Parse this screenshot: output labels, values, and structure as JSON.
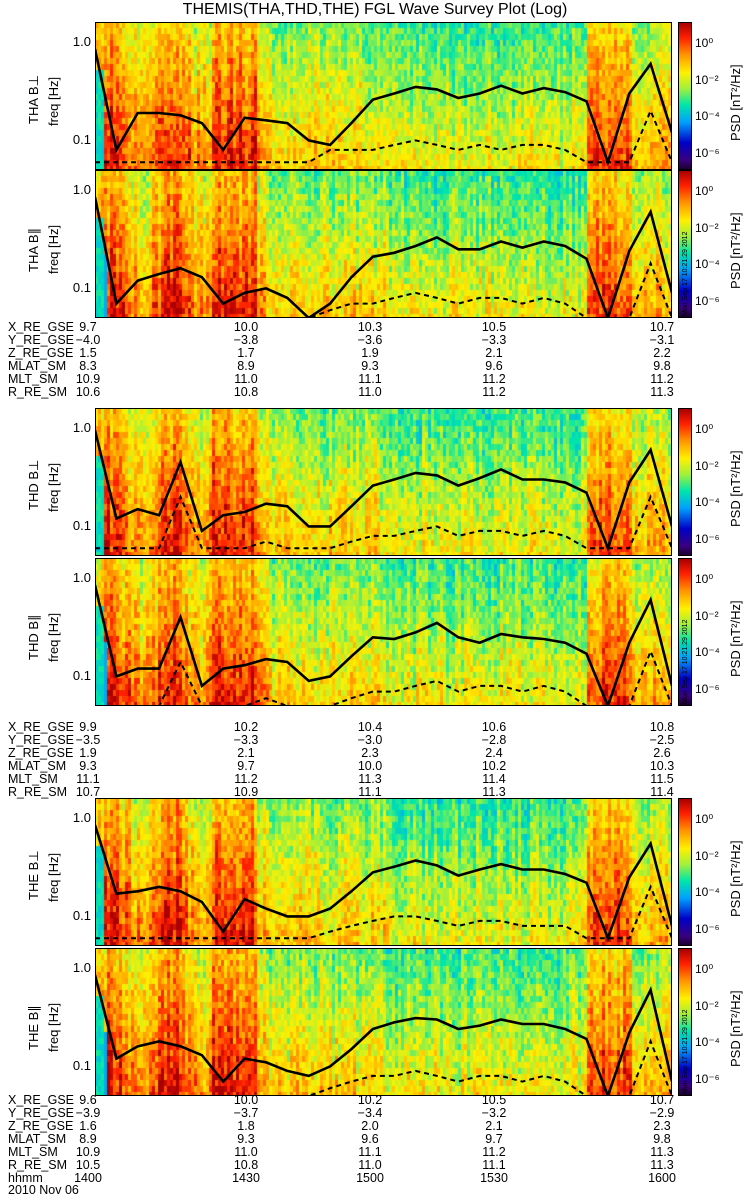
{
  "title": "THEMIS(THA,THD,THE) FGL Wave Survey Plot (Log)",
  "colorbar": {
    "label": "PSD [nT²/Hz]",
    "ticks": [
      "10⁰",
      "10⁻²",
      "10⁻⁴",
      "10⁻⁶"
    ],
    "stamp": "Mon Sep 17 10:21:29 2012"
  },
  "y_axis": {
    "label": "freq [Hz]",
    "ticks": [
      "1.0",
      "0.1"
    ]
  },
  "chart_data": [
    {
      "type": "heatmap",
      "probe": "THA",
      "panel_label": "THA B⊥",
      "component": "perp",
      "seed": 11,
      "ylabel": "freq [Hz]",
      "ylim": [
        0.05,
        1.6
      ],
      "yscale": "log",
      "solid_line": [
        0.85,
        0.08,
        0.19,
        0.19,
        0.18,
        0.15,
        0.08,
        0.17,
        0.16,
        0.15,
        0.1,
        0.09,
        0.15,
        0.26,
        0.3,
        0.35,
        0.33,
        0.27,
        0.3,
        0.36,
        0.3,
        0.34,
        0.31,
        0.25,
        0.06,
        0.3,
        0.6,
        0.12
      ],
      "dashed_line": [
        0.06,
        0.06,
        0.06,
        0.06,
        0.06,
        0.06,
        0.06,
        0.06,
        0.06,
        0.06,
        0.06,
        0.08,
        0.08,
        0.08,
        0.09,
        0.1,
        0.09,
        0.08,
        0.09,
        0.08,
        0.09,
        0.09,
        0.08,
        0.06,
        0.06,
        0.06,
        0.2,
        0.06
      ]
    },
    {
      "type": "heatmap",
      "probe": "THA",
      "panel_label": "THA B∥",
      "component": "para",
      "seed": 23,
      "ylabel": "freq [Hz]",
      "ylim": [
        0.05,
        1.6
      ],
      "yscale": "log",
      "solid_line": [
        0.85,
        0.07,
        0.12,
        0.14,
        0.16,
        0.13,
        0.07,
        0.09,
        0.1,
        0.08,
        0.05,
        0.07,
        0.13,
        0.21,
        0.23,
        0.27,
        0.33,
        0.25,
        0.25,
        0.3,
        0.26,
        0.3,
        0.27,
        0.2,
        0.05,
        0.24,
        0.6,
        0.09
      ],
      "dashed_line": [
        0.05,
        0.05,
        0.05,
        0.05,
        0.05,
        0.05,
        0.05,
        0.05,
        0.05,
        0.05,
        0.05,
        0.06,
        0.07,
        0.07,
        0.08,
        0.09,
        0.08,
        0.07,
        0.08,
        0.08,
        0.07,
        0.08,
        0.07,
        0.05,
        0.05,
        0.05,
        0.18,
        0.05
      ]
    },
    {
      "type": "heatmap",
      "probe": "THD",
      "panel_label": "THD B⊥",
      "component": "perp",
      "seed": 37,
      "ylabel": "freq [Hz]",
      "ylim": [
        0.05,
        1.6
      ],
      "yscale": "log",
      "solid_line": [
        0.95,
        0.12,
        0.15,
        0.13,
        0.45,
        0.09,
        0.13,
        0.14,
        0.17,
        0.16,
        0.1,
        0.1,
        0.16,
        0.26,
        0.3,
        0.35,
        0.33,
        0.26,
        0.31,
        0.38,
        0.3,
        0.3,
        0.28,
        0.22,
        0.06,
        0.28,
        0.6,
        0.1
      ],
      "dashed_line": [
        0.06,
        0.06,
        0.06,
        0.06,
        0.2,
        0.06,
        0.06,
        0.06,
        0.07,
        0.06,
        0.06,
        0.06,
        0.07,
        0.08,
        0.08,
        0.09,
        0.1,
        0.08,
        0.09,
        0.09,
        0.08,
        0.09,
        0.08,
        0.06,
        0.06,
        0.06,
        0.2,
        0.06
      ]
    },
    {
      "type": "heatmap",
      "probe": "THD",
      "panel_label": "THD B∥",
      "component": "para",
      "seed": 51,
      "ylabel": "freq [Hz]",
      "ylim": [
        0.05,
        1.6
      ],
      "yscale": "log",
      "solid_line": [
        0.85,
        0.1,
        0.12,
        0.12,
        0.4,
        0.08,
        0.12,
        0.13,
        0.15,
        0.14,
        0.09,
        0.1,
        0.16,
        0.25,
        0.24,
        0.28,
        0.35,
        0.25,
        0.22,
        0.27,
        0.25,
        0.24,
        0.22,
        0.17,
        0.05,
        0.22,
        0.6,
        0.08
      ],
      "dashed_line": [
        0.05,
        0.05,
        0.05,
        0.05,
        0.14,
        0.05,
        0.05,
        0.05,
        0.06,
        0.05,
        0.05,
        0.05,
        0.06,
        0.07,
        0.07,
        0.08,
        0.09,
        0.07,
        0.08,
        0.08,
        0.07,
        0.08,
        0.07,
        0.05,
        0.05,
        0.05,
        0.18,
        0.05
      ]
    },
    {
      "type": "heatmap",
      "probe": "THE",
      "panel_label": "THE B⊥",
      "component": "perp",
      "seed": 67,
      "ylabel": "freq [Hz]",
      "ylim": [
        0.05,
        1.6
      ],
      "yscale": "log",
      "solid_line": [
        0.85,
        0.17,
        0.18,
        0.2,
        0.18,
        0.14,
        0.07,
        0.15,
        0.12,
        0.1,
        0.1,
        0.12,
        0.18,
        0.28,
        0.32,
        0.37,
        0.33,
        0.26,
        0.3,
        0.34,
        0.3,
        0.3,
        0.27,
        0.22,
        0.06,
        0.25,
        0.55,
        0.08
      ],
      "dashed_line": [
        0.06,
        0.06,
        0.06,
        0.06,
        0.06,
        0.06,
        0.06,
        0.06,
        0.06,
        0.06,
        0.06,
        0.07,
        0.08,
        0.09,
        0.1,
        0.1,
        0.09,
        0.08,
        0.09,
        0.09,
        0.08,
        0.08,
        0.08,
        0.06,
        0.06,
        0.06,
        0.2,
        0.06
      ]
    },
    {
      "type": "heatmap",
      "probe": "THE",
      "panel_label": "THE B∥",
      "component": "para",
      "seed": 83,
      "ylabel": "freq [Hz]",
      "ylim": [
        0.05,
        1.6
      ],
      "yscale": "log",
      "solid_line": [
        0.85,
        0.12,
        0.16,
        0.18,
        0.16,
        0.13,
        0.07,
        0.12,
        0.11,
        0.09,
        0.08,
        0.1,
        0.15,
        0.24,
        0.28,
        0.31,
        0.3,
        0.24,
        0.26,
        0.3,
        0.27,
        0.27,
        0.24,
        0.19,
        0.05,
        0.22,
        0.6,
        0.07
      ],
      "dashed_line": [
        0.05,
        0.05,
        0.05,
        0.05,
        0.05,
        0.05,
        0.05,
        0.05,
        0.05,
        0.05,
        0.05,
        0.06,
        0.07,
        0.08,
        0.08,
        0.09,
        0.08,
        0.07,
        0.08,
        0.08,
        0.07,
        0.08,
        0.07,
        0.05,
        0.05,
        0.05,
        0.18,
        0.05
      ]
    }
  ],
  "ephemeris": [
    {
      "probe": "THA",
      "rows": [
        {
          "label": "X_RE_GSE",
          "values": [
            "9.7",
            "10.0",
            "10.3",
            "10.5",
            "10.7"
          ]
        },
        {
          "label": "Y_RE_GSE",
          "values": [
            "−4.0",
            "−3.8",
            "−3.6",
            "−3.3",
            "−3.1"
          ]
        },
        {
          "label": "Z_RE_GSE",
          "values": [
            "1.5",
            "1.7",
            "1.9",
            "2.1",
            "2.2"
          ]
        },
        {
          "label": "MLAT_SM",
          "values": [
            "8.3",
            "8.9",
            "9.3",
            "9.6",
            "9.8"
          ]
        },
        {
          "label": "MLT_SM",
          "values": [
            "10.9",
            "11.0",
            "11.1",
            "11.2",
            "11.2"
          ]
        },
        {
          "label": "R_RE_SM",
          "values": [
            "10.6",
            "10.8",
            "11.0",
            "11.2",
            "11.3"
          ]
        }
      ]
    },
    {
      "probe": "THD",
      "rows": [
        {
          "label": "X_RE_GSE",
          "values": [
            "9.9",
            "10.2",
            "10.4",
            "10.6",
            "10.8"
          ]
        },
        {
          "label": "Y_RE_GSE",
          "values": [
            "−3.5",
            "−3.3",
            "−3.0",
            "−2.8",
            "−2.5"
          ]
        },
        {
          "label": "Z_RE_GSE",
          "values": [
            "1.9",
            "2.1",
            "2.3",
            "2.4",
            "2.6"
          ]
        },
        {
          "label": "MLAT_SM",
          "values": [
            "9.3",
            "9.7",
            "10.0",
            "10.2",
            "10.3"
          ]
        },
        {
          "label": "MLT_SM",
          "values": [
            "11.1",
            "11.2",
            "11.3",
            "11.4",
            "11.5"
          ]
        },
        {
          "label": "R_RE_SM",
          "values": [
            "10.7",
            "10.9",
            "11.1",
            "11.3",
            "11.4"
          ]
        }
      ]
    },
    {
      "probe": "THE",
      "rows": [
        {
          "label": "X_RE_GSE",
          "values": [
            "9.6",
            "10.0",
            "10.2",
            "10.5",
            "10.7"
          ]
        },
        {
          "label": "Y_RE_GSE",
          "values": [
            "−3.9",
            "−3.7",
            "−3.4",
            "−3.2",
            "−2.9"
          ]
        },
        {
          "label": "Z_RE_GSE",
          "values": [
            "1.6",
            "1.8",
            "2.0",
            "2.1",
            "2.3"
          ]
        },
        {
          "label": "MLAT_SM",
          "values": [
            "8.9",
            "9.3",
            "9.6",
            "9.7",
            "9.8"
          ]
        },
        {
          "label": "MLT_SM",
          "values": [
            "10.9",
            "11.0",
            "11.1",
            "11.2",
            "11.3"
          ]
        },
        {
          "label": "R_RE_SM",
          "values": [
            "10.5",
            "10.8",
            "11.0",
            "11.1",
            "11.3"
          ]
        },
        {
          "label": "hhmm",
          "values": [
            "1400",
            "1430",
            "1500",
            "1530",
            "1600"
          ]
        }
      ]
    }
  ],
  "date": "2010 Nov 06"
}
